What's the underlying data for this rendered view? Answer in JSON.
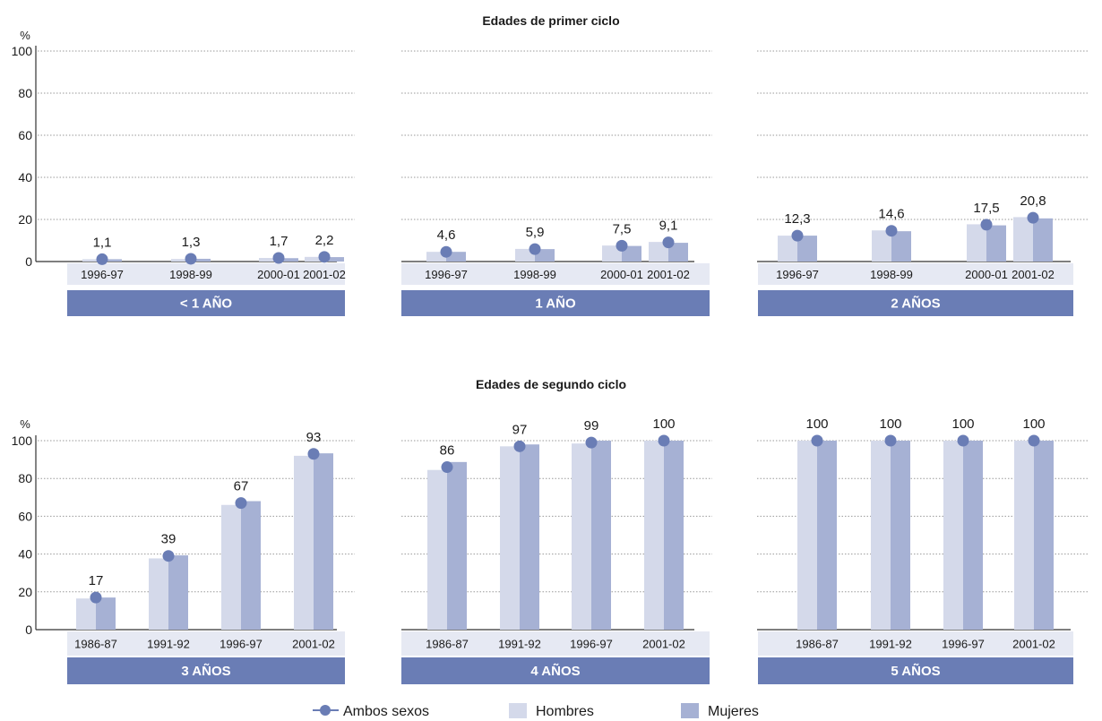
{
  "colors": {
    "hombres": "#d4d9ea",
    "mujeres": "#a6b1d4",
    "ambos": "#6a7db5",
    "band": "#6a7db5",
    "year_strip": "#e6e9f3",
    "grid": "#9a9a9a",
    "text": "#1a1a1a"
  },
  "chart_data": [
    {
      "type": "bar",
      "group": "Edades de primer ciclo",
      "title": "Edades de  primer ciclo",
      "ylabel": "%",
      "ylim": [
        0,
        100
      ],
      "yticks": [
        0,
        20,
        40,
        60,
        80,
        100
      ],
      "grid": true,
      "panels": [
        {
          "label": "< 1 AÑO",
          "categories": [
            "1996-97",
            "1998-99",
            "2000-01",
            "2001-02"
          ],
          "series": [
            {
              "name": "Hombres",
              "values": [
                1.1,
                1.2,
                1.7,
                2.2
              ]
            },
            {
              "name": "Mujeres",
              "values": [
                1.1,
                1.3,
                1.6,
                2.1
              ]
            },
            {
              "name": "Ambos sexos",
              "values": [
                1.1,
                1.3,
                1.7,
                2.2
              ],
              "labels": [
                "1,1",
                "1,3",
                "1,7",
                "2,2"
              ]
            }
          ]
        },
        {
          "label": "1 AÑO",
          "categories": [
            "1996-97",
            "1998-99",
            "2000-01",
            "2001-02"
          ],
          "series": [
            {
              "name": "Hombres",
              "values": [
                4.6,
                6.0,
                7.6,
                9.3
              ]
            },
            {
              "name": "Mujeres",
              "values": [
                4.6,
                5.9,
                7.4,
                8.9
              ]
            },
            {
              "name": "Ambos sexos",
              "values": [
                4.6,
                5.9,
                7.5,
                9.1
              ],
              "labels": [
                "4,6",
                "5,9",
                "7,5",
                "9,1"
              ]
            }
          ]
        },
        {
          "label": "2 AÑOS",
          "categories": [
            "1996-97",
            "1998-99",
            "2000-01",
            "2001-02"
          ],
          "series": [
            {
              "name": "Hombres",
              "values": [
                12.3,
                14.8,
                17.7,
                21.1
              ]
            },
            {
              "name": "Mujeres",
              "values": [
                12.3,
                14.4,
                17.2,
                20.5
              ]
            },
            {
              "name": "Ambos sexos",
              "values": [
                12.3,
                14.6,
                17.5,
                20.8
              ],
              "labels": [
                "12,3",
                "14,6",
                "17,5",
                "20,8"
              ]
            }
          ]
        }
      ]
    },
    {
      "type": "bar",
      "group": "Edades de segundo ciclo",
      "title": "Edades de segundo  ciclo",
      "ylabel": "%",
      "ylim": [
        0,
        100
      ],
      "yticks": [
        0,
        20,
        40,
        60,
        80,
        100
      ],
      "grid": true,
      "panels": [
        {
          "label": "3 AÑOS",
          "categories": [
            "1986-87",
            "1991-92",
            "1996-97",
            "2001-02"
          ],
          "series": [
            {
              "name": "Hombres",
              "values": [
                16.5,
                37.7,
                66,
                92
              ]
            },
            {
              "name": "Mujeres",
              "values": [
                17,
                39.3,
                68,
                93.3
              ]
            },
            {
              "name": "Ambos sexos",
              "values": [
                17,
                39,
                67,
                93
              ],
              "labels": [
                "17",
                "39",
                "67",
                "93"
              ]
            }
          ]
        },
        {
          "label": "4 AÑOS",
          "categories": [
            "1986-87",
            "1991-92",
            "1996-97",
            "2001-02"
          ],
          "series": [
            {
              "name": "Hombres",
              "values": [
                84.5,
                97,
                98.5,
                100
              ]
            },
            {
              "name": "Mujeres",
              "values": [
                88.7,
                98,
                100,
                100
              ]
            },
            {
              "name": "Ambos sexos",
              "values": [
                86,
                97,
                99,
                100
              ],
              "labels": [
                "86",
                "97",
                "99",
                "100"
              ]
            }
          ]
        },
        {
          "label": "5 AÑOS",
          "categories": [
            "1986-87",
            "1991-92",
            "1996-97",
            "2001-02"
          ],
          "series": [
            {
              "name": "Hombres",
              "values": [
                100,
                100,
                100,
                100
              ]
            },
            {
              "name": "Mujeres",
              "values": [
                100,
                100,
                100,
                100
              ]
            },
            {
              "name": "Ambos sexos",
              "values": [
                100,
                100,
                100,
                100
              ],
              "labels": [
                "100",
                "100",
                "100",
                "100"
              ]
            }
          ]
        }
      ]
    }
  ],
  "legend": {
    "position": "bottom",
    "items": [
      {
        "name": "Ambos sexos",
        "marker": "line-dot"
      },
      {
        "name": "Hombres",
        "marker": "square"
      },
      {
        "name": "Mujeres",
        "marker": "square"
      }
    ]
  }
}
